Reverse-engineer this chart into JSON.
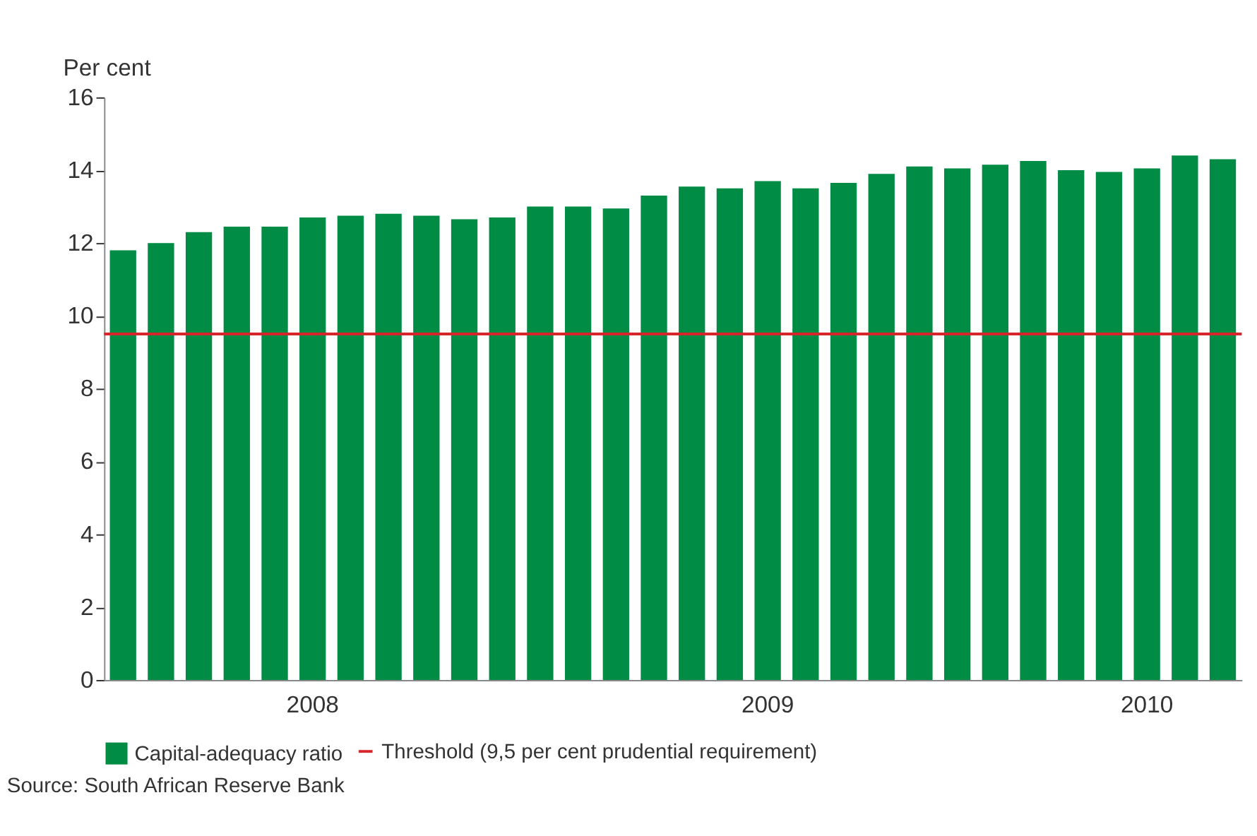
{
  "chart_data": {
    "type": "bar",
    "ylabel": "Per cent",
    "categories": [
      null,
      null,
      null,
      null,
      null,
      "2008",
      null,
      null,
      null,
      null,
      null,
      null,
      null,
      null,
      null,
      null,
      null,
      "2009",
      null,
      null,
      null,
      null,
      null,
      null,
      null,
      null,
      null,
      "2010",
      null,
      null
    ],
    "series": [
      {
        "name": "Capital-adequacy ratio",
        "color": "#008c45",
        "values": [
          11.8,
          12.0,
          12.3,
          12.45,
          12.45,
          12.7,
          12.75,
          12.8,
          12.75,
          12.65,
          12.7,
          13.0,
          13.0,
          12.95,
          13.3,
          13.55,
          13.5,
          13.7,
          13.5,
          13.65,
          13.9,
          14.1,
          14.05,
          14.15,
          14.25,
          14.0,
          13.95,
          14.05,
          14.4,
          14.3
        ]
      }
    ],
    "ylim": [
      0,
      16
    ],
    "yticks": [
      0,
      2,
      4,
      6,
      8,
      10,
      12,
      14,
      16
    ],
    "grid": false,
    "legend": "bottom",
    "ref_lines": [
      {
        "axis": "y",
        "value": 9.5,
        "label": "Threshold (9,5 per cent prudential requirement)",
        "color": "#d7262b"
      }
    ],
    "annotations": [
      "Source: South African Reserve Bank"
    ]
  }
}
